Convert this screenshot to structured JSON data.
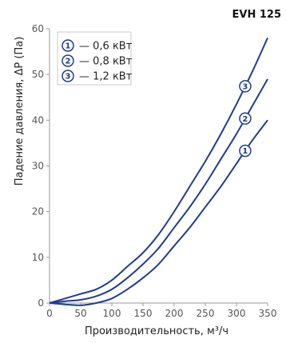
{
  "chart_data": {
    "type": "line",
    "title": "EVH 125",
    "xlabel": "Производительность, м³/ч",
    "ylabel": "Падение давления, ΔР (Па)",
    "xlim": [
      0,
      350
    ],
    "ylim": [
      0,
      60
    ],
    "xticks": [
      0,
      50,
      100,
      150,
      200,
      250,
      300,
      350
    ],
    "yticks": [
      0,
      10,
      20,
      30,
      40,
      50,
      60
    ],
    "grid": false,
    "legend_position": "top-left",
    "line_color": "#1f3c8f",
    "series": [
      {
        "marker": "1",
        "name": "— 0,6 кВт",
        "x": [
          0,
          25,
          50,
          75,
          100,
          125,
          150,
          175,
          200,
          225,
          250,
          275,
          300,
          325,
          350
        ],
        "y": [
          0,
          -0.3,
          -0.5,
          0,
          1,
          3,
          5.5,
          8.5,
          12.5,
          16.5,
          21,
          25.5,
          30.5,
          35.5,
          40
        ]
      },
      {
        "marker": "2",
        "name": "— 0,8 кВт",
        "x": [
          0,
          25,
          50,
          75,
          100,
          125,
          150,
          175,
          200,
          225,
          250,
          275,
          300,
          325,
          350
        ],
        "y": [
          0,
          0.4,
          0.7,
          1.5,
          3,
          5.5,
          8.5,
          12,
          16.5,
          21,
          26,
          31.5,
          37,
          43,
          49
        ]
      },
      {
        "marker": "3",
        "name": "— 1,2 кВт",
        "x": [
          0,
          25,
          50,
          75,
          100,
          125,
          150,
          175,
          200,
          225,
          250,
          275,
          300,
          325,
          350
        ],
        "y": [
          0,
          1,
          2,
          3,
          5,
          8,
          11,
          15,
          20,
          25.5,
          31,
          37,
          43.5,
          50.5,
          58
        ]
      }
    ]
  }
}
